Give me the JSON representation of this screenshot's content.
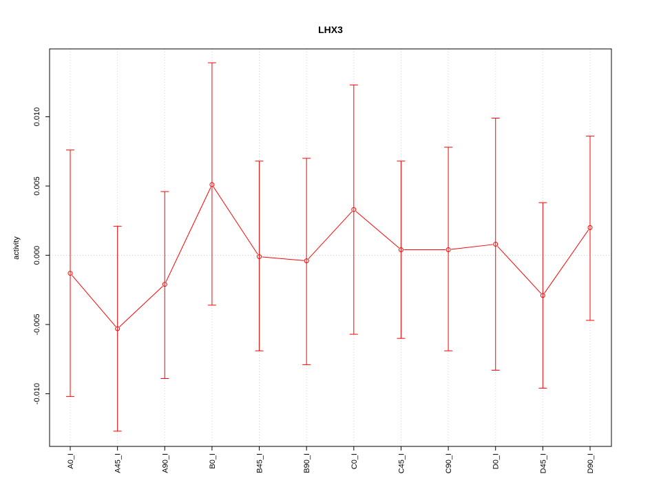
{
  "chart_data": {
    "type": "line",
    "title": "LHX3",
    "xlabel": "",
    "ylabel": "activity",
    "categories": [
      "A0_I",
      "A45_I",
      "A90_I",
      "B0_I",
      "B45_I",
      "B90_I",
      "C0_I",
      "C45_I",
      "C90_I",
      "D0_I",
      "D45_I",
      "D90_I"
    ],
    "series": [
      {
        "values": [
          -0.0013,
          -0.0053,
          -0.0021,
          0.0051,
          -0.0001,
          -0.0004,
          0.0033,
          0.0004,
          0.0004,
          0.0008,
          -0.0029,
          0.002
        ],
        "lower": [
          -0.0102,
          -0.0127,
          -0.0089,
          -0.0036,
          -0.0069,
          -0.0079,
          -0.0057,
          -0.006,
          -0.0069,
          -0.0083,
          -0.0096,
          -0.0047
        ],
        "upper": [
          0.0076,
          0.0021,
          0.0046,
          0.0139,
          0.0068,
          0.007,
          0.0123,
          0.0068,
          0.0078,
          0.0099,
          0.0038,
          0.0086
        ]
      }
    ],
    "yticks": [
      "-0.010",
      "-0.005",
      "0.000",
      "0.005",
      "0.010"
    ],
    "ytick_values": [
      -0.01,
      -0.005,
      0.0,
      0.005,
      0.01
    ],
    "ylim": [
      -0.0138,
      0.0149
    ],
    "grid": true,
    "colors": {
      "series": "#ff0000",
      "grid": "#d3d3d3",
      "axis": "#000000"
    }
  }
}
